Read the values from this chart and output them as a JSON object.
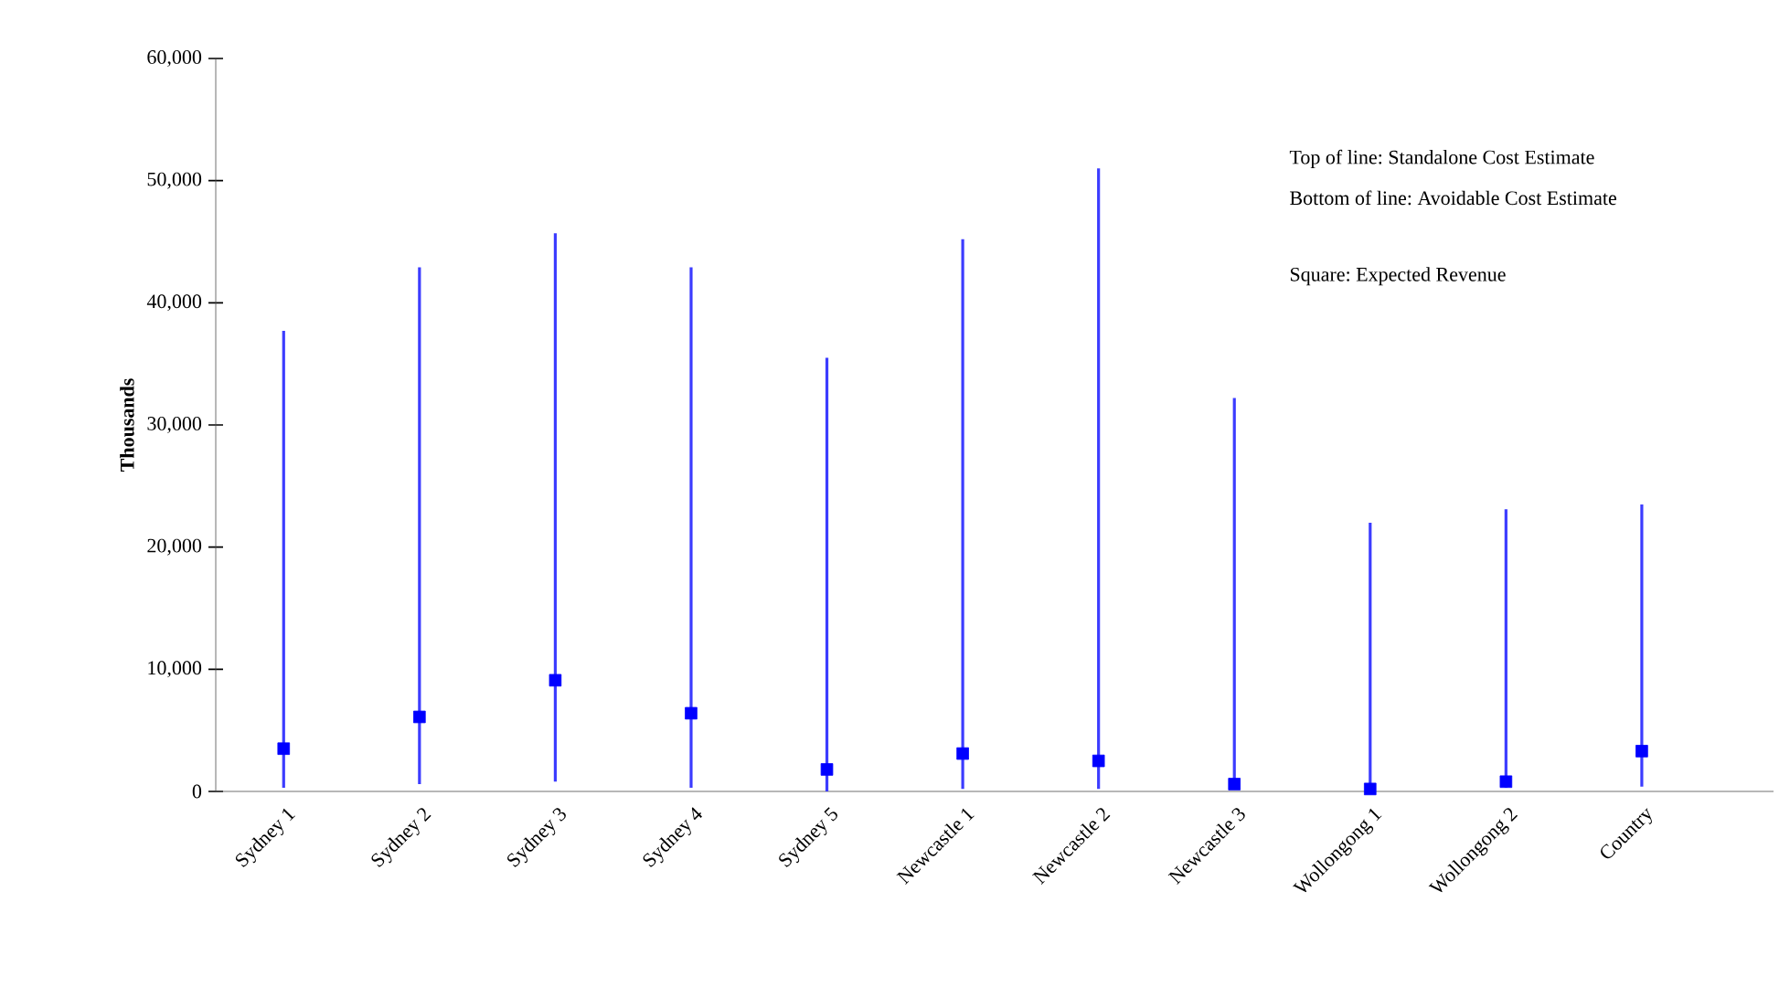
{
  "chart_data": {
    "type": "bar",
    "ylabel": "Thousands",
    "categories": [
      "Sydney 1",
      "Sydney 2",
      "Sydney 3",
      "Sydney 4",
      "Sydney 5",
      "Newcastle 1",
      "Newcastle 2",
      "Newcastle 3",
      "Wollongong 1",
      "Wollongong 2",
      "Country"
    ],
    "ylim": [
      0,
      60000
    ],
    "yticks": [
      0,
      {
        "value": 10000,
        "label": "10,000"
      },
      {
        "value": 20000,
        "label": "20,000"
      },
      {
        "value": 30000,
        "label": "30,000"
      },
      {
        "value": 40000,
        "label": "40,000"
      },
      {
        "value": 50000,
        "label": "50,000"
      },
      {
        "value": 60000,
        "label": "60,000"
      }
    ],
    "series": [
      {
        "color": "#3c3cff",
        "base": [
          300,
          600,
          800,
          300,
          0,
          200,
          200,
          300,
          0,
          300,
          400
        ],
        "values": [
          37400,
          42300,
          44900,
          42600,
          35500,
          45000,
          50800,
          31900,
          22000,
          22800,
          23100
        ]
      },
      {
        "type": "scatter",
        "color": "#0000ff",
        "marker": "square",
        "x": [
          "Sydney 1",
          "Sydney 2",
          "Sydney 3",
          "Sydney 4",
          "Sydney 5",
          "Newcastle 1",
          "Newcastle 2",
          "Newcastle 3",
          "Wollongong 1",
          "Wollongong 2",
          "Country"
        ],
        "values": [
          3500,
          6100,
          9100,
          6400,
          1800,
          3100,
          2500,
          600,
          200,
          800,
          3300
        ]
      }
    ],
    "annotations": [
      "Top of line: Standalone Cost Estimate",
      "Bottom of line: Avoidable Cost Estimate",
      "Square: Expected Revenue"
    ],
    "grid": false
  }
}
